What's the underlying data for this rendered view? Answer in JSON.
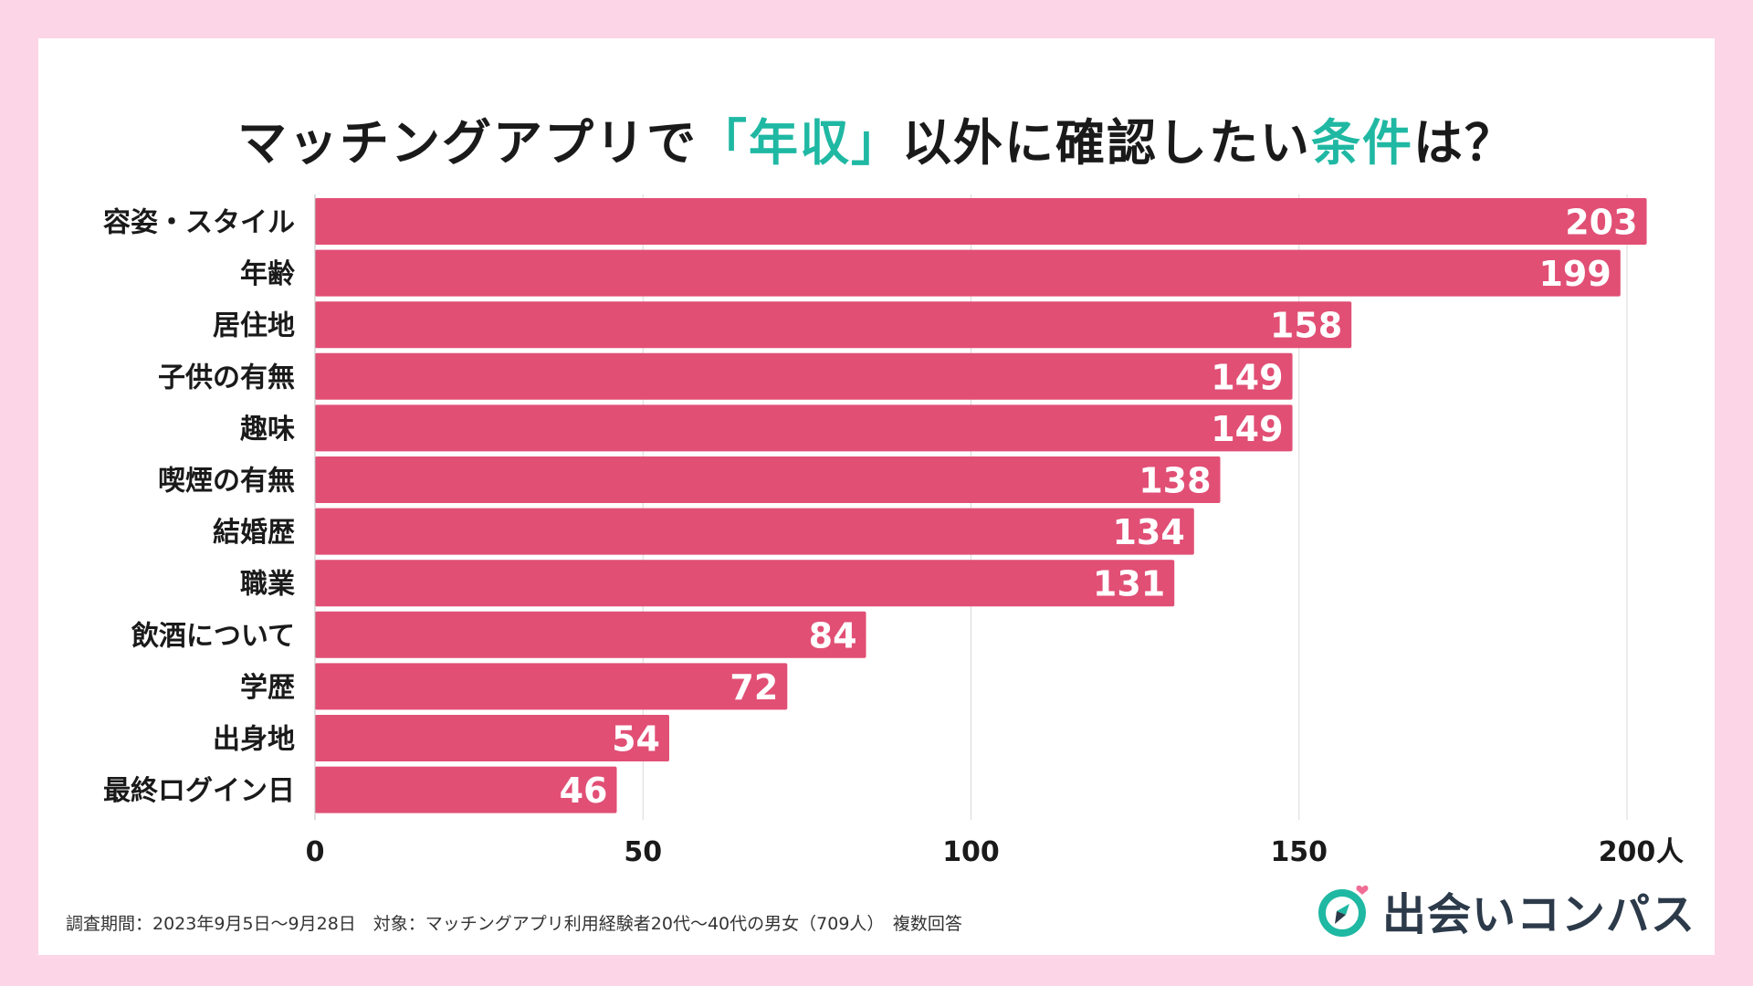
{
  "title": {
    "part1": "マッチングアプリで",
    "accent1": "「年収」",
    "part2": "以外に確認したい",
    "accent2": "条件",
    "part3": "は？"
  },
  "colors": {
    "background": "#fcd6e6",
    "bar": "#e14f75",
    "accent": "#1fb8a3",
    "grid": "#d9d9d9"
  },
  "chart_data": {
    "type": "bar",
    "orientation": "horizontal",
    "categories": [
      "容姿・スタイル",
      "年齢",
      "居住地",
      "子供の有無",
      "趣味",
      "喫煙の有無",
      "結婚歴",
      "職業",
      "飲酒について",
      "学歴",
      "出身地",
      "最終ログイン日"
    ],
    "values": [
      203,
      199,
      158,
      149,
      149,
      138,
      134,
      131,
      84,
      72,
      54,
      46
    ],
    "xlim": [
      0,
      200
    ],
    "xticks": [
      "0",
      "50",
      "100",
      "150",
      "200"
    ],
    "xunit": "人",
    "grid": true
  },
  "footnote": "調査期間：2023年9月5日〜9月28日　対象：マッチングアプリ利用経験者20代〜40代の男女（709人）　複数回答",
  "brand": {
    "name": "出会いコンパス",
    "icon": "compass-heart-icon"
  }
}
